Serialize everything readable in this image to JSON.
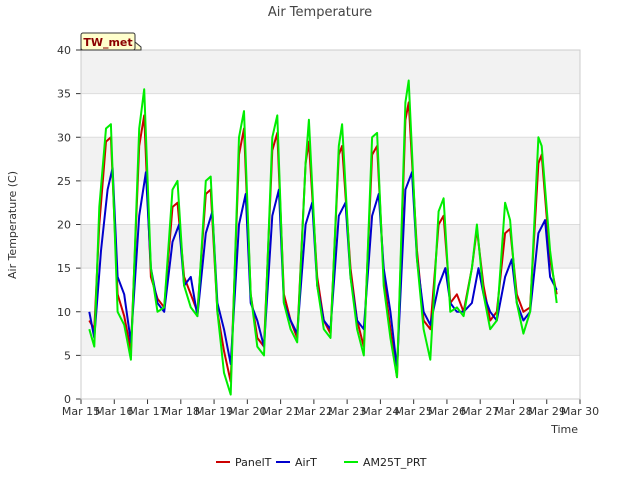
{
  "chart_data": {
    "type": "line",
    "title": "Air Temperature",
    "xlabel": "Time",
    "ylabel": "Air Temperature (C)",
    "station_label": "TW_met",
    "x_ticks": [
      "Mar 15",
      "Mar 16",
      "Mar 17",
      "Mar 18",
      "Mar 19",
      "Mar 20",
      "Mar 21",
      "Mar 22",
      "Mar 23",
      "Mar 24",
      "Mar 25",
      "Mar 26",
      "Mar 27",
      "Mar 28",
      "Mar 29",
      "Mar 30"
    ],
    "xlim": [
      15,
      30
    ],
    "ylim": [
      0,
      40
    ],
    "y_ticks": [
      0,
      5,
      10,
      15,
      20,
      25,
      30,
      35,
      40
    ],
    "grid": true,
    "legend_position": "bottom-center",
    "series": [
      {
        "name": "PanelT",
        "color": "#cc0000",
        "points": [
          [
            15.25,
            9
          ],
          [
            15.4,
            8
          ],
          [
            15.55,
            20
          ],
          [
            15.75,
            29.5
          ],
          [
            15.9,
            30
          ],
          [
            16.1,
            12
          ],
          [
            16.3,
            9.5
          ],
          [
            16.5,
            5.5
          ],
          [
            16.75,
            29
          ],
          [
            16.9,
            32.5
          ],
          [
            17.1,
            14
          ],
          [
            17.3,
            11.5
          ],
          [
            17.5,
            10.5
          ],
          [
            17.75,
            22
          ],
          [
            17.9,
            22.5
          ],
          [
            18.1,
            14
          ],
          [
            18.3,
            12
          ],
          [
            18.5,
            10
          ],
          [
            18.75,
            23.5
          ],
          [
            18.9,
            24
          ],
          [
            19.1,
            10
          ],
          [
            19.3,
            5.5
          ],
          [
            19.5,
            2
          ],
          [
            19.75,
            28
          ],
          [
            19.9,
            31
          ],
          [
            20.1,
            12
          ],
          [
            20.3,
            7
          ],
          [
            20.5,
            6
          ],
          [
            20.75,
            28.5
          ],
          [
            20.9,
            30.5
          ],
          [
            21.1,
            12
          ],
          [
            21.3,
            9
          ],
          [
            21.5,
            7
          ],
          [
            21.75,
            27
          ],
          [
            21.85,
            29.5
          ],
          [
            22.1,
            14
          ],
          [
            22.3,
            9
          ],
          [
            22.5,
            7.5
          ],
          [
            22.75,
            28
          ],
          [
            22.85,
            29
          ],
          [
            23.1,
            15
          ],
          [
            23.3,
            9
          ],
          [
            23.5,
            6
          ],
          [
            23.75,
            28
          ],
          [
            23.9,
            29
          ],
          [
            24.1,
            14
          ],
          [
            24.3,
            8
          ],
          [
            24.5,
            2.5
          ],
          [
            24.75,
            32
          ],
          [
            24.85,
            34
          ],
          [
            25.1,
            17
          ],
          [
            25.3,
            9
          ],
          [
            25.5,
            8
          ],
          [
            25.75,
            20
          ],
          [
            25.9,
            21
          ],
          [
            26.1,
            11
          ],
          [
            26.3,
            12
          ],
          [
            26.5,
            10
          ],
          [
            26.75,
            15
          ],
          [
            26.9,
            19.5
          ],
          [
            27.1,
            13
          ],
          [
            27.3,
            9
          ],
          [
            27.5,
            10
          ],
          [
            27.75,
            19
          ],
          [
            27.9,
            19.5
          ],
          [
            28.1,
            12
          ],
          [
            28.3,
            10
          ],
          [
            28.5,
            10.5
          ],
          [
            28.75,
            27
          ],
          [
            28.85,
            28
          ],
          [
            29.1,
            16
          ],
          [
            29.3,
            12
          ]
        ]
      },
      {
        "name": "AirT",
        "color": "#0000cc",
        "points": [
          [
            15.25,
            10
          ],
          [
            15.4,
            7
          ],
          [
            15.6,
            17
          ],
          [
            15.8,
            24
          ],
          [
            15.95,
            26.5
          ],
          [
            16.1,
            14
          ],
          [
            16.3,
            12
          ],
          [
            16.5,
            6.5
          ],
          [
            16.75,
            21
          ],
          [
            16.95,
            26
          ],
          [
            17.1,
            15
          ],
          [
            17.3,
            11
          ],
          [
            17.5,
            10
          ],
          [
            17.75,
            18
          ],
          [
            17.95,
            20
          ],
          [
            18.1,
            13
          ],
          [
            18.3,
            14
          ],
          [
            18.5,
            9.5
          ],
          [
            18.75,
            19
          ],
          [
            18.95,
            21.5
          ],
          [
            19.1,
            11
          ],
          [
            19.3,
            8
          ],
          [
            19.5,
            4
          ],
          [
            19.75,
            20
          ],
          [
            19.95,
            23.5
          ],
          [
            20.1,
            11
          ],
          [
            20.3,
            9
          ],
          [
            20.5,
            6
          ],
          [
            20.75,
            21
          ],
          [
            20.95,
            24
          ],
          [
            21.1,
            11
          ],
          [
            21.3,
            9
          ],
          [
            21.5,
            7.5
          ],
          [
            21.75,
            20
          ],
          [
            21.95,
            22.5
          ],
          [
            22.1,
            13
          ],
          [
            22.3,
            9
          ],
          [
            22.5,
            8
          ],
          [
            22.75,
            21
          ],
          [
            22.95,
            22.5
          ],
          [
            23.1,
            14
          ],
          [
            23.3,
            9
          ],
          [
            23.5,
            8
          ],
          [
            23.75,
            21
          ],
          [
            23.95,
            23.5
          ],
          [
            24.1,
            15
          ],
          [
            24.3,
            10
          ],
          [
            24.5,
            3.5
          ],
          [
            24.75,
            24
          ],
          [
            24.95,
            26
          ],
          [
            25.1,
            16
          ],
          [
            25.3,
            10
          ],
          [
            25.5,
            8.5
          ],
          [
            25.75,
            13
          ],
          [
            25.95,
            15
          ],
          [
            26.1,
            11
          ],
          [
            26.3,
            10
          ],
          [
            26.5,
            10
          ],
          [
            26.75,
            11
          ],
          [
            26.95,
            15
          ],
          [
            27.1,
            12
          ],
          [
            27.3,
            10
          ],
          [
            27.5,
            9
          ],
          [
            27.75,
            14
          ],
          [
            27.95,
            16
          ],
          [
            28.1,
            11
          ],
          [
            28.3,
            9
          ],
          [
            28.5,
            10
          ],
          [
            28.75,
            19
          ],
          [
            28.95,
            20.5
          ],
          [
            29.1,
            14
          ],
          [
            29.3,
            12.5
          ]
        ]
      },
      {
        "name": "AM25T_PRT",
        "color": "#00ee00",
        "points": [
          [
            15.25,
            8
          ],
          [
            15.4,
            6
          ],
          [
            15.55,
            22
          ],
          [
            15.75,
            31
          ],
          [
            15.9,
            31.5
          ],
          [
            16.1,
            10
          ],
          [
            16.3,
            8.5
          ],
          [
            16.5,
            4.5
          ],
          [
            16.75,
            31
          ],
          [
            16.9,
            35.5
          ],
          [
            17.1,
            15
          ],
          [
            17.3,
            10
          ],
          [
            17.5,
            10.5
          ],
          [
            17.75,
            24
          ],
          [
            17.9,
            25
          ],
          [
            18.1,
            13
          ],
          [
            18.3,
            10.5
          ],
          [
            18.5,
            9.5
          ],
          [
            18.75,
            25
          ],
          [
            18.9,
            25.5
          ],
          [
            19.1,
            10
          ],
          [
            19.3,
            3
          ],
          [
            19.5,
            0.5
          ],
          [
            19.75,
            30
          ],
          [
            19.9,
            33
          ],
          [
            20.1,
            12
          ],
          [
            20.3,
            6
          ],
          [
            20.5,
            5
          ],
          [
            20.75,
            30
          ],
          [
            20.9,
            32.5
          ],
          [
            21.1,
            11
          ],
          [
            21.3,
            8
          ],
          [
            21.5,
            6.5
          ],
          [
            21.75,
            27
          ],
          [
            21.85,
            32
          ],
          [
            22.1,
            13
          ],
          [
            22.3,
            8
          ],
          [
            22.5,
            7
          ],
          [
            22.75,
            29
          ],
          [
            22.85,
            31.5
          ],
          [
            23.1,
            14
          ],
          [
            23.3,
            8
          ],
          [
            23.5,
            5
          ],
          [
            23.75,
            30
          ],
          [
            23.9,
            30.5
          ],
          [
            24.1,
            13
          ],
          [
            24.3,
            7
          ],
          [
            24.5,
            2.5
          ],
          [
            24.75,
            34
          ],
          [
            24.85,
            36.5
          ],
          [
            25.1,
            16
          ],
          [
            25.3,
            8
          ],
          [
            25.5,
            4.5
          ],
          [
            25.75,
            21.5
          ],
          [
            25.9,
            23
          ],
          [
            26.1,
            10
          ],
          [
            26.3,
            10.5
          ],
          [
            26.5,
            9.5
          ],
          [
            26.75,
            15
          ],
          [
            26.9,
            20
          ],
          [
            27.1,
            12
          ],
          [
            27.3,
            8
          ],
          [
            27.5,
            9
          ],
          [
            27.75,
            22.5
          ],
          [
            27.9,
            20.5
          ],
          [
            28.1,
            11
          ],
          [
            28.3,
            7.5
          ],
          [
            28.5,
            10
          ],
          [
            28.75,
            30
          ],
          [
            28.85,
            29
          ],
          [
            29.1,
            17
          ],
          [
            29.3,
            11
          ]
        ]
      }
    ]
  }
}
